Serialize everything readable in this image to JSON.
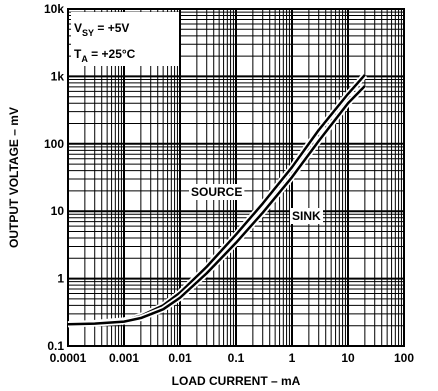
{
  "chart_data": {
    "type": "line",
    "xlabel": "LOAD CURRENT – mA",
    "ylabel": "OUTPUT VOLTAGE – mV",
    "x_scale": "log",
    "y_scale": "log",
    "xlim": [
      0.0001,
      100
    ],
    "ylim": [
      0.1,
      10000
    ],
    "grid": true,
    "x_ticks": [
      "0.0001",
      "0.001",
      "0.01",
      "0.1",
      "1",
      "10",
      "100"
    ],
    "y_ticks": [
      "0.1",
      "1",
      "10",
      "100",
      "1k",
      "10k"
    ],
    "conditions": {
      "line1": {
        "main": "V",
        "sub": "SY",
        "rest": " = +5V"
      },
      "line2": {
        "main": "T",
        "sub": "A",
        "rest": " = +25°C"
      }
    },
    "series": [
      {
        "name": "SOURCE",
        "x": [
          0.0001,
          0.0003,
          0.001,
          0.002,
          0.005,
          0.01,
          0.03,
          0.1,
          0.3,
          1,
          3,
          10,
          20
        ],
        "y": [
          0.21,
          0.22,
          0.24,
          0.28,
          0.4,
          0.62,
          1.5,
          4.5,
          13,
          45,
          160,
          550,
          1050
        ]
      },
      {
        "name": "SINK",
        "x": [
          0.0001,
          0.0003,
          0.001,
          0.002,
          0.005,
          0.01,
          0.03,
          0.1,
          0.3,
          1,
          3,
          10,
          20
        ],
        "y": [
          0.21,
          0.215,
          0.23,
          0.26,
          0.35,
          0.52,
          1.2,
          3.4,
          9.5,
          32,
          110,
          400,
          720
        ]
      }
    ],
    "annotations": [
      "SOURCE",
      "SINK"
    ]
  }
}
